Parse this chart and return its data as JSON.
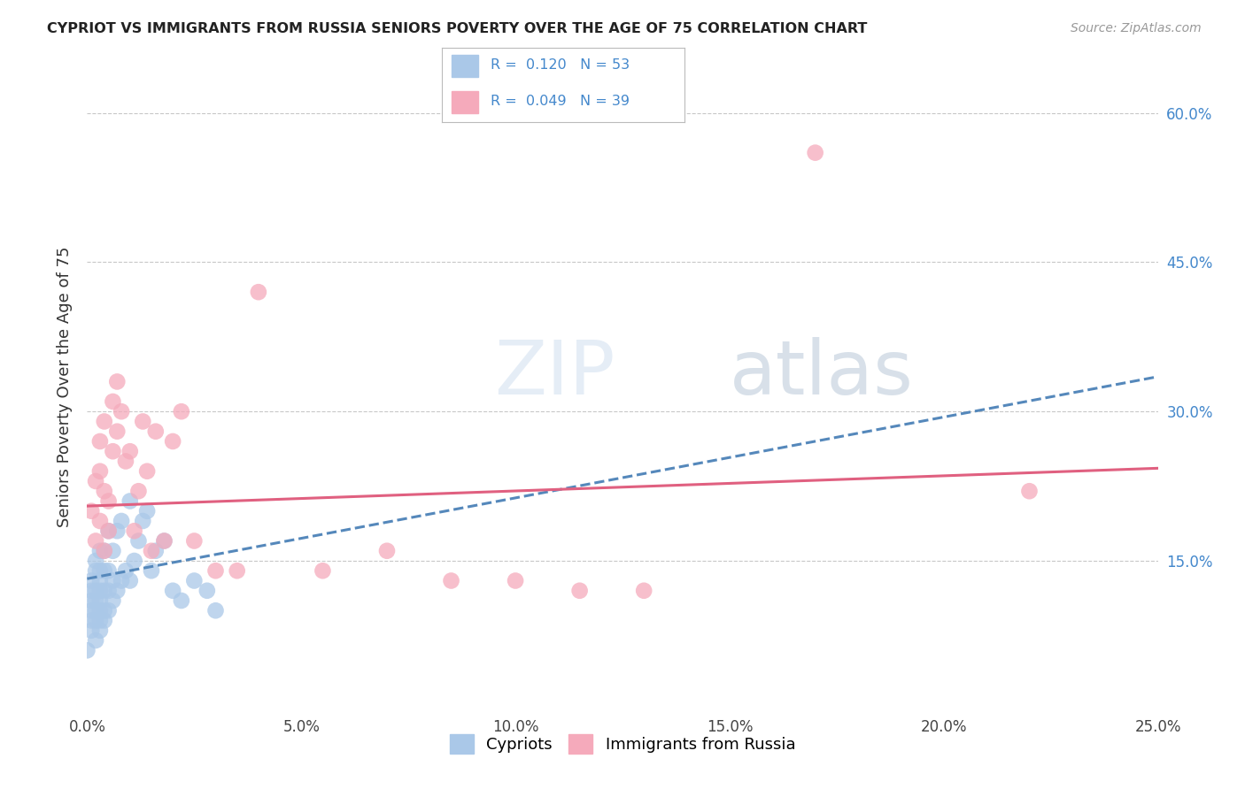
{
  "title": "CYPRIOT VS IMMIGRANTS FROM RUSSIA SENIORS POVERTY OVER THE AGE OF 75 CORRELATION CHART",
  "source": "Source: ZipAtlas.com",
  "ylabel": "Seniors Poverty Over the Age of 75",
  "xlim": [
    0,
    0.25
  ],
  "ylim": [
    0,
    0.65
  ],
  "xticks": [
    0.0,
    0.05,
    0.1,
    0.15,
    0.2,
    0.25
  ],
  "yticks_right": [
    0.15,
    0.3,
    0.45,
    0.6
  ],
  "grid_color": "#c8c8c8",
  "background_color": "#ffffff",
  "legend_R1": "0.120",
  "legend_N1": "53",
  "legend_R2": "0.049",
  "legend_N2": "39",
  "cypriot_color": "#aac8e8",
  "russia_color": "#f5aabb",
  "trend_cypriot_color": "#5588bb",
  "trend_russia_color": "#e06080",
  "cypriot_x": [
    0.0,
    0.001,
    0.001,
    0.001,
    0.001,
    0.001,
    0.001,
    0.002,
    0.002,
    0.002,
    0.002,
    0.002,
    0.002,
    0.002,
    0.003,
    0.003,
    0.003,
    0.003,
    0.003,
    0.003,
    0.003,
    0.003,
    0.004,
    0.004,
    0.004,
    0.004,
    0.004,
    0.005,
    0.005,
    0.005,
    0.005,
    0.006,
    0.006,
    0.006,
    0.007,
    0.007,
    0.008,
    0.008,
    0.009,
    0.01,
    0.01,
    0.011,
    0.012,
    0.013,
    0.014,
    0.015,
    0.016,
    0.018,
    0.02,
    0.022,
    0.025,
    0.028,
    0.03
  ],
  "cypriot_y": [
    0.06,
    0.08,
    0.09,
    0.1,
    0.11,
    0.12,
    0.13,
    0.07,
    0.09,
    0.1,
    0.11,
    0.12,
    0.14,
    0.15,
    0.08,
    0.09,
    0.1,
    0.11,
    0.12,
    0.13,
    0.14,
    0.16,
    0.09,
    0.1,
    0.12,
    0.14,
    0.16,
    0.1,
    0.12,
    0.14,
    0.18,
    0.11,
    0.13,
    0.16,
    0.12,
    0.18,
    0.13,
    0.19,
    0.14,
    0.13,
    0.21,
    0.15,
    0.17,
    0.19,
    0.2,
    0.14,
    0.16,
    0.17,
    0.12,
    0.11,
    0.13,
    0.12,
    0.1
  ],
  "russia_x": [
    0.001,
    0.002,
    0.002,
    0.003,
    0.003,
    0.003,
    0.004,
    0.004,
    0.004,
    0.005,
    0.005,
    0.006,
    0.006,
    0.007,
    0.007,
    0.008,
    0.009,
    0.01,
    0.011,
    0.012,
    0.013,
    0.014,
    0.015,
    0.016,
    0.018,
    0.02,
    0.022,
    0.025,
    0.03,
    0.035,
    0.04,
    0.055,
    0.07,
    0.085,
    0.1,
    0.115,
    0.13,
    0.17,
    0.22
  ],
  "russia_y": [
    0.2,
    0.17,
    0.23,
    0.19,
    0.24,
    0.27,
    0.16,
    0.22,
    0.29,
    0.21,
    0.18,
    0.26,
    0.31,
    0.28,
    0.33,
    0.3,
    0.25,
    0.26,
    0.18,
    0.22,
    0.29,
    0.24,
    0.16,
    0.28,
    0.17,
    0.27,
    0.3,
    0.17,
    0.14,
    0.14,
    0.42,
    0.14,
    0.16,
    0.13,
    0.13,
    0.12,
    0.12,
    0.56,
    0.22
  ],
  "trend_cypriot_x0": 0.0,
  "trend_cypriot_y0": 0.132,
  "trend_cypriot_x1": 0.25,
  "trend_cypriot_y1": 0.335,
  "trend_russia_x0": 0.0,
  "trend_russia_y0": 0.205,
  "trend_russia_x1": 0.25,
  "trend_russia_y1": 0.243
}
